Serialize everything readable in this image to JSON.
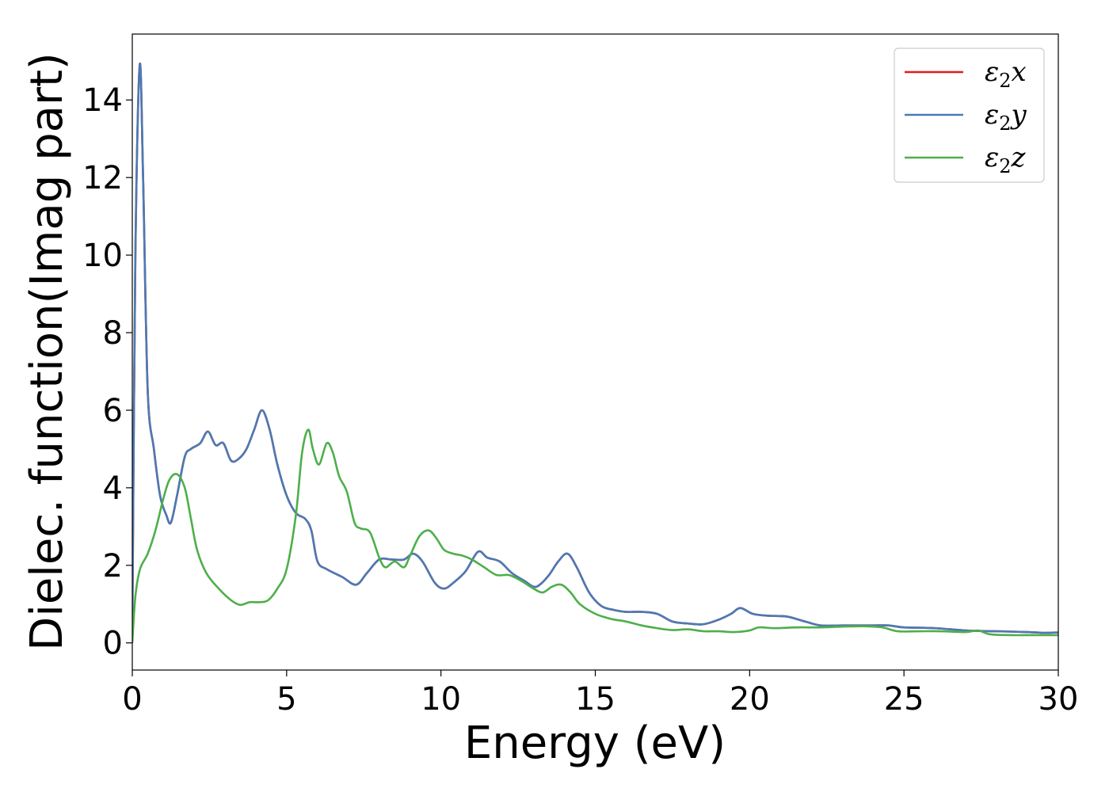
{
  "chart_data": {
    "type": "line",
    "xlabel": "Energy (eV)",
    "ylabel": "Dielec. function(Imag part)",
    "xlim": [
      0,
      30
    ],
    "ylim": [
      -0.7,
      15.7
    ],
    "xticks": [
      "0",
      "5",
      "10",
      "15",
      "20",
      "25",
      "30"
    ],
    "yticks": [
      "0",
      "2",
      "4",
      "6",
      "8",
      "10",
      "12",
      "14"
    ],
    "grid": false,
    "legend_position": "top-right",
    "series": [
      {
        "name": "ε₂x",
        "legend_base": "ε",
        "legend_sub": "2",
        "legend_var": "x",
        "color": "#e41a1c",
        "x": [
          0,
          0.1,
          0.24,
          0.35,
          0.5,
          0.7,
          0.9,
          1.1,
          1.25,
          1.45,
          1.7,
          1.9,
          2.2,
          2.45,
          2.7,
          2.95,
          3.2,
          3.45,
          3.7,
          3.95,
          4.2,
          4.45,
          4.7,
          5.0,
          5.3,
          5.6,
          5.8,
          6.0,
          6.3,
          6.8,
          7.25,
          7.6,
          8.0,
          8.4,
          8.8,
          9.1,
          9.4,
          9.8,
          10.1,
          10.4,
          10.8,
          11.2,
          11.5,
          11.9,
          12.3,
          12.7,
          13.0,
          13.2,
          13.5,
          13.8,
          14.1,
          14.4,
          14.8,
          15.2,
          15.6,
          16.0,
          16.5,
          17.0,
          17.5,
          18.0,
          18.5,
          19.0,
          19.4,
          19.7,
          20.1,
          20.6,
          21.2,
          21.8,
          22.3,
          23.0,
          23.5,
          24.0,
          24.5,
          25.0,
          26.0,
          27.0,
          28.0,
          29.0,
          29.5,
          30.0
        ],
        "values": [
          0.2,
          10.0,
          14.9,
          12.0,
          6.5,
          5.0,
          3.8,
          3.3,
          3.1,
          3.8,
          4.8,
          5.0,
          5.15,
          5.45,
          5.1,
          5.15,
          4.7,
          4.75,
          5.0,
          5.5,
          6.0,
          5.5,
          4.6,
          3.8,
          3.35,
          3.2,
          2.9,
          2.1,
          1.9,
          1.7,
          1.5,
          1.8,
          2.15,
          2.15,
          2.15,
          2.3,
          2.1,
          1.55,
          1.4,
          1.55,
          1.85,
          2.35,
          2.2,
          2.1,
          1.8,
          1.6,
          1.45,
          1.5,
          1.75,
          2.1,
          2.3,
          1.95,
          1.3,
          0.95,
          0.85,
          0.8,
          0.8,
          0.75,
          0.55,
          0.5,
          0.48,
          0.6,
          0.75,
          0.9,
          0.75,
          0.7,
          0.68,
          0.55,
          0.45,
          0.45,
          0.45,
          0.45,
          0.45,
          0.4,
          0.38,
          0.32,
          0.3,
          0.28,
          0.26,
          0.27
        ]
      },
      {
        "name": "ε₂y",
        "legend_base": "ε",
        "legend_sub": "2",
        "legend_var": "y",
        "color": "#4a7ab5",
        "x": [
          0,
          0.1,
          0.24,
          0.35,
          0.5,
          0.7,
          0.9,
          1.1,
          1.25,
          1.45,
          1.7,
          1.9,
          2.2,
          2.45,
          2.7,
          2.95,
          3.2,
          3.45,
          3.7,
          3.95,
          4.2,
          4.45,
          4.7,
          5.0,
          5.3,
          5.6,
          5.8,
          6.0,
          6.3,
          6.8,
          7.25,
          7.6,
          8.0,
          8.4,
          8.8,
          9.1,
          9.4,
          9.8,
          10.1,
          10.4,
          10.8,
          11.2,
          11.5,
          11.9,
          12.3,
          12.7,
          13.0,
          13.2,
          13.5,
          13.8,
          14.1,
          14.4,
          14.8,
          15.2,
          15.6,
          16.0,
          16.5,
          17.0,
          17.5,
          18.0,
          18.5,
          19.0,
          19.4,
          19.7,
          20.1,
          20.6,
          21.2,
          21.8,
          22.3,
          23.0,
          23.5,
          24.0,
          24.5,
          25.0,
          26.0,
          27.0,
          28.0,
          29.0,
          29.5,
          30.0
        ],
        "values": [
          0.2,
          10.0,
          14.9,
          12.0,
          6.5,
          5.0,
          3.8,
          3.3,
          3.1,
          3.8,
          4.8,
          5.0,
          5.15,
          5.45,
          5.1,
          5.15,
          4.7,
          4.75,
          5.0,
          5.5,
          6.0,
          5.5,
          4.6,
          3.8,
          3.35,
          3.2,
          2.9,
          2.1,
          1.9,
          1.7,
          1.5,
          1.8,
          2.15,
          2.15,
          2.15,
          2.3,
          2.1,
          1.55,
          1.4,
          1.55,
          1.85,
          2.35,
          2.2,
          2.1,
          1.8,
          1.6,
          1.45,
          1.5,
          1.75,
          2.1,
          2.3,
          1.95,
          1.3,
          0.95,
          0.85,
          0.8,
          0.8,
          0.75,
          0.55,
          0.5,
          0.48,
          0.6,
          0.75,
          0.9,
          0.75,
          0.7,
          0.68,
          0.55,
          0.45,
          0.45,
          0.45,
          0.45,
          0.45,
          0.4,
          0.38,
          0.32,
          0.3,
          0.28,
          0.26,
          0.27
        ]
      },
      {
        "name": "ε₂z",
        "legend_base": "ε",
        "legend_sub": "2",
        "legend_var": "z",
        "color": "#4daf4a",
        "x": [
          0,
          0.1,
          0.25,
          0.5,
          0.75,
          1.0,
          1.2,
          1.45,
          1.7,
          1.9,
          2.1,
          2.4,
          2.8,
          3.2,
          3.5,
          3.8,
          4.1,
          4.4,
          4.7,
          5.0,
          5.3,
          5.5,
          5.7,
          5.85,
          6.05,
          6.3,
          6.5,
          6.7,
          6.95,
          7.2,
          7.4,
          7.7,
          8.0,
          8.2,
          8.5,
          8.8,
          9.0,
          9.3,
          9.6,
          9.85,
          10.1,
          10.4,
          10.7,
          11.0,
          11.4,
          11.8,
          12.2,
          12.6,
          13.0,
          13.3,
          13.6,
          13.9,
          14.2,
          14.5,
          15.0,
          15.5,
          16.0,
          16.5,
          17.0,
          17.5,
          18.0,
          18.5,
          19.0,
          19.5,
          20.0,
          20.3,
          20.8,
          21.5,
          22.3,
          23.0,
          23.7,
          24.3,
          24.8,
          25.5,
          26.2,
          27.0,
          27.4,
          27.8,
          28.5,
          29.2,
          30.0
        ],
        "values": [
          0.0,
          1.2,
          1.9,
          2.3,
          2.9,
          3.7,
          4.2,
          4.35,
          4.0,
          3.2,
          2.4,
          1.8,
          1.4,
          1.1,
          0.98,
          1.05,
          1.05,
          1.1,
          1.4,
          1.9,
          3.3,
          4.9,
          5.5,
          5.0,
          4.6,
          5.15,
          4.9,
          4.3,
          3.9,
          3.1,
          2.95,
          2.85,
          2.2,
          1.95,
          2.1,
          1.95,
          2.25,
          2.75,
          2.9,
          2.7,
          2.4,
          2.3,
          2.25,
          2.15,
          1.95,
          1.75,
          1.75,
          1.6,
          1.4,
          1.3,
          1.45,
          1.5,
          1.3,
          1.0,
          0.75,
          0.62,
          0.55,
          0.45,
          0.38,
          0.33,
          0.35,
          0.3,
          0.3,
          0.28,
          0.32,
          0.4,
          0.38,
          0.4,
          0.4,
          0.42,
          0.43,
          0.4,
          0.3,
          0.3,
          0.3,
          0.28,
          0.32,
          0.22,
          0.2,
          0.2,
          0.2
        ]
      }
    ]
  }
}
